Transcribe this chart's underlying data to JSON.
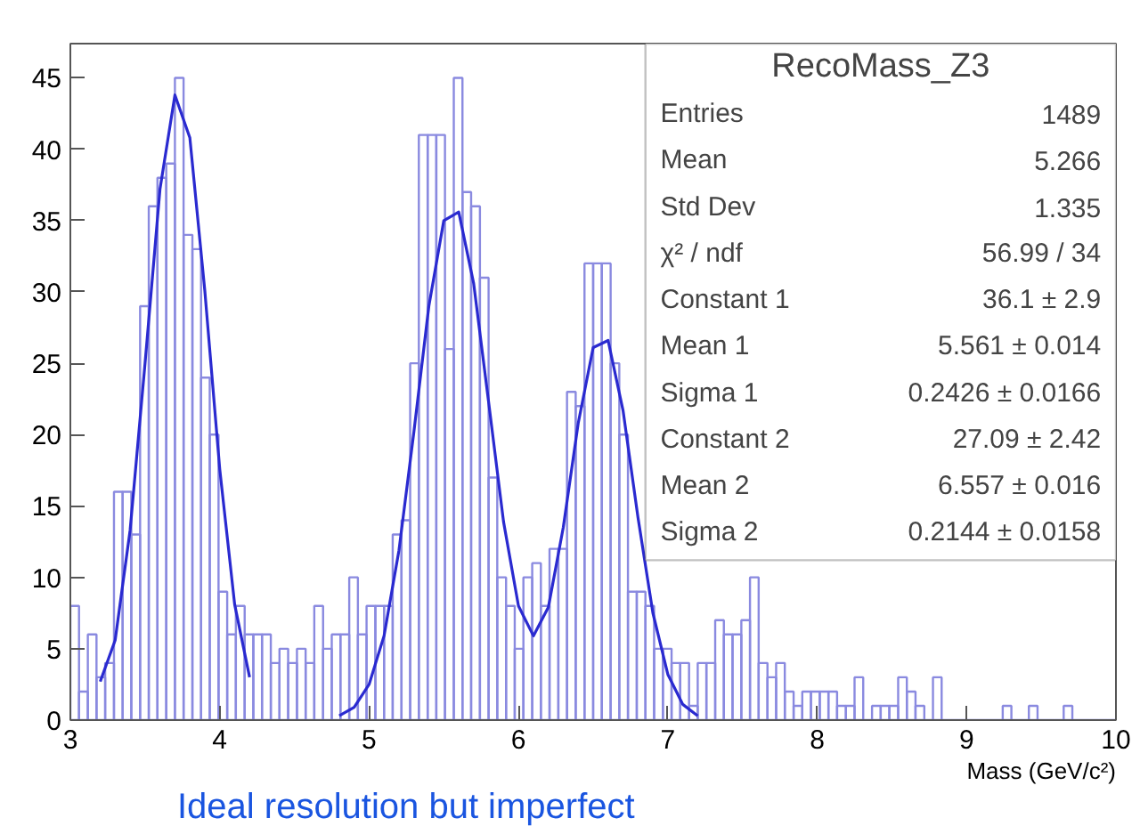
{
  "chart_data": {
    "type": "histogram",
    "title": "RecoMass_Z3",
    "xlabel": "Mass (GeV/c²)",
    "bins": [
      3,
      3.058,
      3.117,
      3.175,
      3.233,
      3.292,
      3.35,
      3.408,
      3.467,
      3.525,
      3.583,
      3.642,
      3.7,
      3.758,
      3.817,
      3.875,
      3.933,
      3.992,
      4.05,
      4.108,
      4.167,
      4.225,
      4.283,
      4.342,
      4.4,
      4.458,
      4.517,
      4.575,
      4.633,
      4.692,
      4.75,
      4.808,
      4.867,
      4.925,
      4.983,
      5.042,
      5.1,
      5.158,
      5.217,
      5.275,
      5.333,
      5.392,
      5.45,
      5.508,
      5.567,
      5.625,
      5.683,
      5.742,
      5.8,
      5.858,
      5.917,
      5.975,
      6.033,
      6.092,
      6.15,
      6.208,
      6.267,
      6.325,
      6.383,
      6.442,
      6.5,
      6.558,
      6.617,
      6.675,
      6.733,
      6.792,
      6.85,
      6.908,
      6.967,
      7.025,
      7.083,
      7.142,
      7.2,
      7.258,
      7.317,
      7.375,
      7.433,
      7.492,
      7.55,
      7.608,
      7.667,
      7.725,
      7.783,
      7.842,
      7.9,
      7.958,
      8.017,
      8.075,
      8.133,
      8.192,
      8.25,
      8.308,
      8.367,
      8.425,
      8.483,
      8.542,
      8.6,
      8.658,
      8.717,
      8.775,
      8.833,
      8.892,
      8.95,
      9.008,
      9.067,
      9.125,
      9.183,
      9.242,
      9.3,
      9.358,
      9.417,
      9.475,
      9.533,
      9.592,
      9.65,
      9.708,
      9.767,
      9.825,
      9.883,
      9.942,
      10
    ],
    "values": [
      8,
      2,
      6,
      3,
      4,
      16,
      16,
      13,
      29,
      36,
      38,
      39,
      45,
      34,
      33,
      24,
      20,
      9,
      6,
      8,
      6,
      6,
      6,
      4,
      5,
      4,
      5,
      4,
      8,
      5,
      6,
      6,
      10,
      6,
      8,
      8,
      8,
      13,
      14,
      25,
      41,
      41,
      41,
      26,
      45,
      37,
      36,
      31,
      17,
      10,
      8,
      5,
      10,
      11,
      8,
      12,
      12,
      23,
      22,
      32,
      32,
      32,
      25,
      20,
      9,
      9,
      8,
      5,
      5,
      4,
      4,
      1,
      4,
      4,
      7,
      6,
      6,
      7,
      10,
      4,
      3,
      4,
      2,
      1,
      2,
      2,
      2,
      2,
      1,
      1,
      3,
      0,
      1,
      1,
      1,
      3,
      2,
      1,
      0,
      3,
      0,
      0,
      0,
      0,
      0,
      0,
      0,
      1,
      0,
      0,
      1,
      0,
      0,
      0,
      1,
      0,
      0,
      0,
      0,
      0
    ],
    "color": "#8a8ae0",
    "series": [
      {
        "type": "line",
        "color": "#2a2ad0",
        "x": [
          3.2,
          3.3,
          3.4,
          3.5,
          3.6,
          3.7,
          3.8,
          3.9,
          4.0,
          4.1,
          4.2
        ],
        "values": [
          2.7,
          5.6,
          13.3,
          25,
          37.2,
          43.8,
          40.8,
          30.1,
          17.6,
          8.1,
          3.0
        ]
      },
      {
        "type": "line",
        "color": "#2a2ad0",
        "x": [
          4.8,
          4.9,
          5.0,
          5.1,
          5.2,
          5.3,
          5.4,
          5.5,
          5.6,
          5.7,
          5.8,
          5.9,
          6.0,
          6.1,
          6.2,
          6.3,
          6.4,
          6.5,
          6.6,
          6.7,
          6.8,
          6.9,
          7.0,
          7.1,
          7.2
        ],
        "values": [
          0.3,
          0.9,
          2.5,
          5.9,
          11.9,
          20.2,
          29,
          35,
          35.6,
          30.6,
          22.3,
          13.9,
          8,
          5.9,
          7.9,
          13.5,
          20.8,
          26.1,
          26.6,
          21.7,
          14.2,
          7.5,
          3.2,
          1.1,
          0.3
        ]
      }
    ],
    "xlim": [
      3,
      10
    ],
    "ylim": [
      0,
      47.4
    ],
    "xticks": [
      3,
      4,
      5,
      6,
      7,
      8,
      9,
      10
    ],
    "yticks": [
      0,
      5,
      10,
      15,
      20,
      25,
      30,
      35,
      40,
      45
    ],
    "grid": false,
    "annotations": [
      "Entries",
      "1489",
      "Mean",
      "5.266",
      "Std Dev",
      "1.335",
      "χ² / ndf",
      "56.99 / 34",
      "Constant 1",
      "36.1 ± 2.9",
      "Mean 1",
      "5.561 ± 0.014",
      "Sigma 1",
      "0.2426 ± 0.0166",
      "Constant 2",
      "27.09 ± 2.42",
      "Mean 2",
      "6.557 ± 0.016",
      "Sigma 2",
      "0.2144 ± 0.0158",
      "Ideal resolution but imperfect"
    ]
  }
}
